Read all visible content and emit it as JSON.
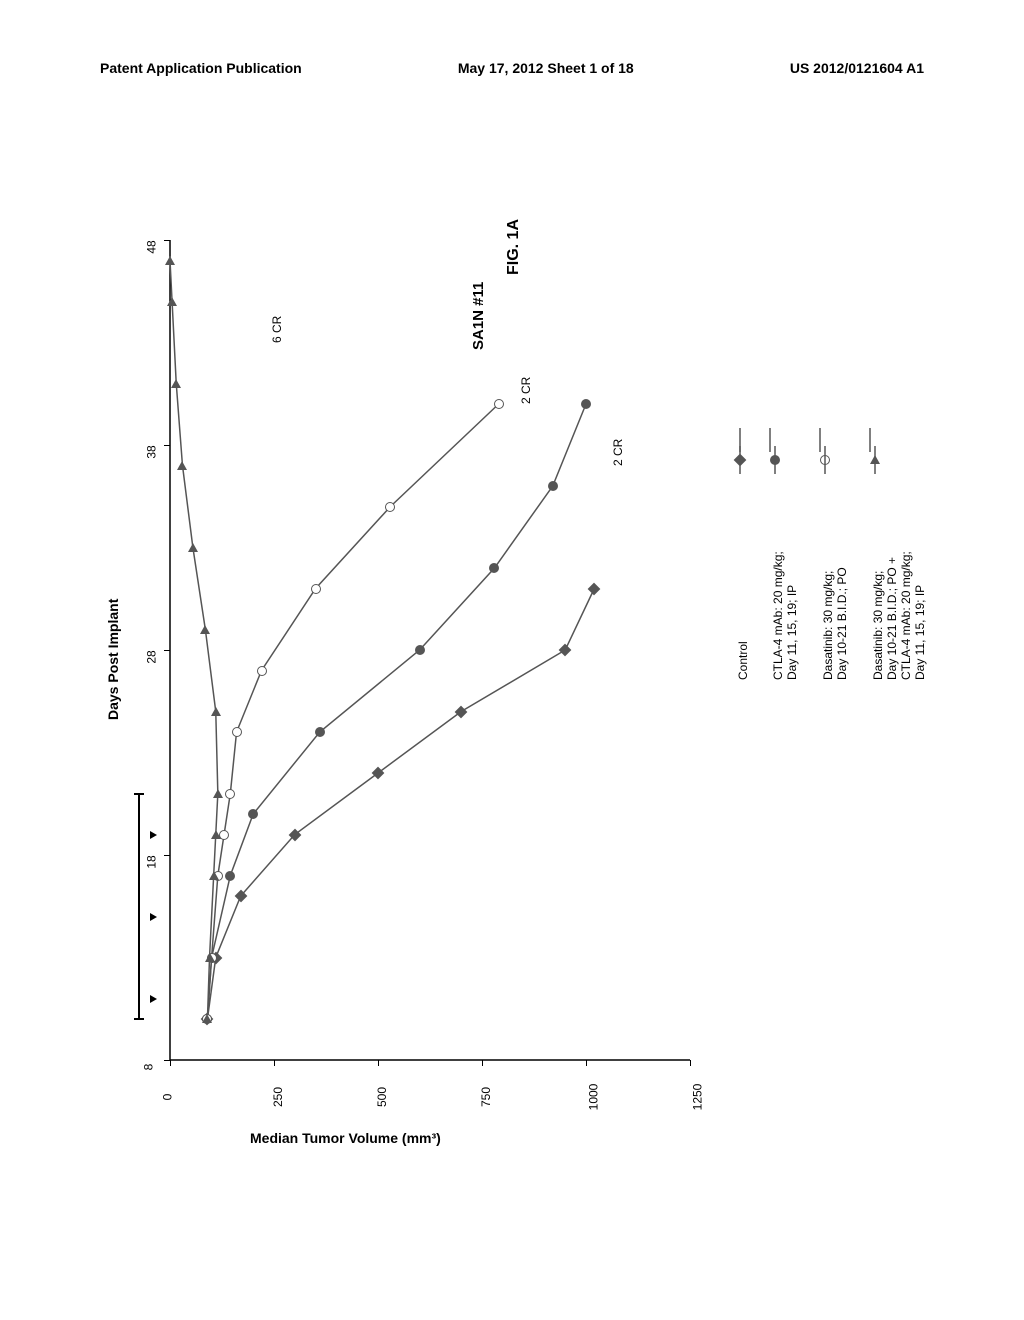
{
  "header": {
    "left": "Patent Application Publication",
    "center": "May 17, 2012  Sheet 1 of 18",
    "right": "US 2012/0121604 A1"
  },
  "figure": {
    "label": "FIG. 1A",
    "title": "SA1N #11",
    "x_axis_label": "Days Post Implant",
    "y_axis_label": "Median Tumor Volume (mm³)",
    "x_ticks": [
      8,
      18,
      28,
      38,
      48
    ],
    "y_ticks": [
      0,
      250,
      500,
      750,
      1000,
      1250
    ],
    "xlim": [
      8,
      48
    ],
    "ylim": [
      0,
      1250
    ],
    "background_color": "#ffffff",
    "axis_color": "#000000",
    "line_color": "#555555",
    "series": [
      {
        "name": "control",
        "label_lines": [
          "Control"
        ],
        "marker": "diamond",
        "days": [
          10,
          13,
          16,
          19,
          22,
          25,
          28,
          31
        ],
        "values": [
          90,
          110,
          170,
          300,
          500,
          700,
          950,
          1020
        ]
      },
      {
        "name": "ctla4",
        "label_lines": [
          "CTLA-4 mAb: 20 mg/kg;",
          "Day 11, 15, 19; IP"
        ],
        "marker": "circle-filled",
        "days": [
          10,
          13,
          17,
          20,
          24,
          28,
          32,
          36,
          40
        ],
        "values": [
          90,
          100,
          145,
          200,
          360,
          600,
          780,
          920,
          1000
        ],
        "annotation": "2 CR",
        "ann_day": 37,
        "ann_value": 1060
      },
      {
        "name": "dasatinib",
        "label_lines": [
          "Dasatinib: 30 mg/kg;",
          "Day 10-21 B.I.D.; PO"
        ],
        "marker": "circle-open",
        "days": [
          10,
          13,
          17,
          19,
          21,
          24,
          27,
          31,
          35,
          40
        ],
        "values": [
          90,
          100,
          115,
          130,
          145,
          160,
          220,
          350,
          530,
          790
        ],
        "annotation": "2 CR",
        "ann_day": 40,
        "ann_value": 840
      },
      {
        "name": "combo",
        "label_lines": [
          "Dasatinib: 30 mg/kg;",
          "Day 10-21 B.I.D.; PO +",
          "CTLA-4 mAb: 20 mg/kg;",
          "Day 11, 15, 19; IP"
        ],
        "marker": "triangle",
        "days": [
          10,
          13,
          17,
          19,
          21,
          25,
          29,
          33,
          37,
          41,
          45,
          47
        ],
        "values": [
          90,
          95,
          105,
          110,
          115,
          110,
          85,
          55,
          30,
          15,
          5,
          0
        ],
        "annotation": "6 CR",
        "ann_day": 43,
        "ann_value": 240
      }
    ],
    "dose_arrows_mab_days": [
      11,
      15,
      19
    ],
    "dose_bar_dasatinib": {
      "start": 10,
      "end": 21
    }
  }
}
